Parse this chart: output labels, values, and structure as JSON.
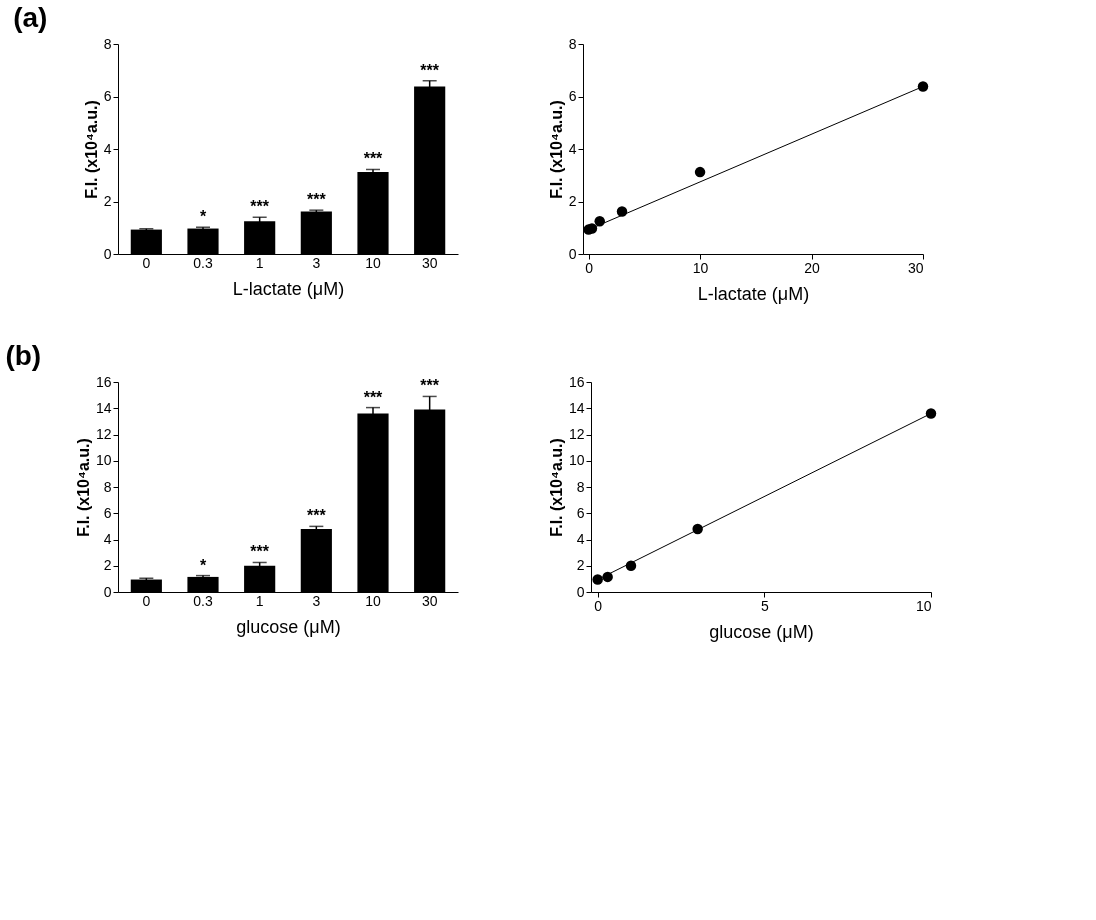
{
  "chart_data": [
    {
      "type": "bar",
      "title": "(a)",
      "categories": [
        "0",
        "0.3",
        "1",
        "3",
        "10",
        "30"
      ],
      "values": [
        0.93,
        0.97,
        1.25,
        1.62,
        3.12,
        6.38
      ],
      "errors": [
        0.03,
        0.05,
        0.15,
        0.05,
        0.1,
        0.22
      ],
      "color": "#000000",
      "ylim": [
        0,
        8
      ],
      "yticks": [
        0,
        2,
        4,
        6,
        8
      ],
      "xlabel": "L-lactate (μM)",
      "ylabel": "F.I. (x10⁴a.u.)",
      "grid": false,
      "annotations": [
        {
          "text": "*",
          "x": "0.3",
          "y": 1.02
        },
        {
          "text": "***",
          "x": "1",
          "y": 1.4
        },
        {
          "text": "***",
          "x": "3",
          "y": 1.67
        },
        {
          "text": "***",
          "x": "10",
          "y": 3.22
        },
        {
          "text": "***",
          "x": "30",
          "y": 6.6
        }
      ]
    },
    {
      "type": "scatter",
      "marker": "circle",
      "xlim": [
        -0.5,
        30
      ],
      "xticks": [
        0,
        10,
        20,
        30
      ],
      "ylim": [
        0,
        8
      ],
      "yticks": [
        0,
        2,
        4,
        6,
        8
      ],
      "xlabel": "L-lactate (μM)",
      "ylabel": "F.I. (x10⁴a.u.)",
      "grid": false,
      "series": [
        {
          "type": "scatter",
          "color": "#000000",
          "x": [
            0,
            0.3,
            1,
            3,
            10,
            30
          ],
          "values": [
            0.93,
            0.97,
            1.25,
            1.62,
            3.12,
            6.38
          ]
        },
        {
          "type": "line",
          "marker": "none",
          "color": "#000000",
          "x": [
            0,
            30
          ],
          "values": [
            0.93,
            6.38
          ]
        }
      ]
    },
    {
      "type": "bar",
      "title": "(b)",
      "categories": [
        "0",
        "0.3",
        "1",
        "3",
        "10",
        "30"
      ],
      "values": [
        0.95,
        1.15,
        2.0,
        4.8,
        13.6,
        13.9
      ],
      "errors": [
        0.1,
        0.1,
        0.25,
        0.2,
        0.45,
        1.0
      ],
      "color": "#000000",
      "ylim": [
        0,
        16
      ],
      "yticks": [
        0,
        2,
        4,
        6,
        8,
        10,
        12,
        14,
        16
      ],
      "xlabel": "glucose (μM)",
      "ylabel": "F.I. (x10⁴a.u.)",
      "grid": false,
      "annotations": [
        {
          "text": "*",
          "x": "0.3",
          "y": 1.25
        },
        {
          "text": "***",
          "x": "1",
          "y": 2.25
        },
        {
          "text": "***",
          "x": "3",
          "y": 5.0
        },
        {
          "text": "***",
          "x": "10",
          "y": 14.05
        },
        {
          "text": "***",
          "x": "30",
          "y": 14.9
        }
      ]
    },
    {
      "type": "scatter",
      "marker": "circle",
      "xlim": [
        -0.2,
        10
      ],
      "xticks": [
        0,
        5,
        10
      ],
      "ylim": [
        0,
        16
      ],
      "yticks": [
        0,
        2,
        4,
        6,
        8,
        10,
        12,
        14,
        16
      ],
      "xlabel": "glucose (μM)",
      "ylabel": "F.I. (x10⁴a.u.)",
      "grid": false,
      "series": [
        {
          "type": "scatter",
          "color": "#000000",
          "x": [
            0,
            0.3,
            1,
            3,
            10
          ],
          "values": [
            0.95,
            1.15,
            2.0,
            4.8,
            13.6
          ]
        },
        {
          "type": "line",
          "marker": "none",
          "color": "#000000",
          "x": [
            0,
            10
          ],
          "values": [
            0.95,
            13.6
          ]
        }
      ]
    }
  ]
}
